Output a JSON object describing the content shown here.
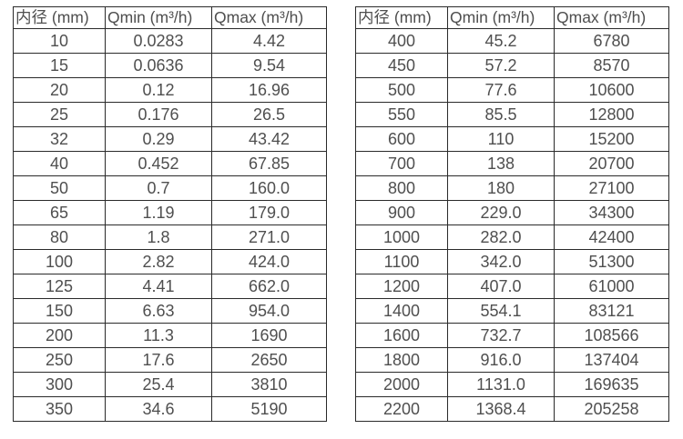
{
  "colors": {
    "border": "#2a2a2a",
    "text": "#4f4f4f",
    "background": "#ffffff"
  },
  "chart_data": [
    {
      "type": "table",
      "title": "",
      "headers": [
        "内径 (mm)",
        "Qmin (m³/h)",
        "Qmax (m³/h)"
      ],
      "rows": [
        [
          "10",
          "0.0283",
          "4.42"
        ],
        [
          "15",
          "0.0636",
          "9.54"
        ],
        [
          "20",
          "0.12",
          "16.96"
        ],
        [
          "25",
          "0.176",
          "26.5"
        ],
        [
          "32",
          "0.29",
          "43.42"
        ],
        [
          "40",
          "0.452",
          "67.85"
        ],
        [
          "50",
          "0.7",
          "160.0"
        ],
        [
          "65",
          "1.19",
          "179.0"
        ],
        [
          "80",
          "1.8",
          "271.0"
        ],
        [
          "100",
          "2.82",
          "424.0"
        ],
        [
          "125",
          "4.41",
          "662.0"
        ],
        [
          "150",
          "6.63",
          "954.0"
        ],
        [
          "200",
          "11.3",
          "1690"
        ],
        [
          "250",
          "17.6",
          "2650"
        ],
        [
          "300",
          "25.4",
          "3810"
        ],
        [
          "350",
          "34.6",
          "5190"
        ]
      ]
    },
    {
      "type": "table",
      "title": "",
      "headers": [
        "内径 (mm)",
        "Qmin (m³/h)",
        "Qmax (m³/h)"
      ],
      "rows": [
        [
          "400",
          "45.2",
          "6780"
        ],
        [
          "450",
          "57.2",
          "8570"
        ],
        [
          "500",
          "77.6",
          "10600"
        ],
        [
          "550",
          "85.5",
          "12800"
        ],
        [
          "600",
          "110",
          "15200"
        ],
        [
          "700",
          "138",
          "20700"
        ],
        [
          "800",
          "180",
          "27100"
        ],
        [
          "900",
          "229.0",
          "34300"
        ],
        [
          "1000",
          "282.0",
          "42400"
        ],
        [
          "1100",
          "342.0",
          "51300"
        ],
        [
          "1200",
          "407.0",
          "61000"
        ],
        [
          "1400",
          "554.1",
          "83121"
        ],
        [
          "1600",
          "732.7",
          "108566"
        ],
        [
          "1800",
          "916.0",
          "137404"
        ],
        [
          "2000",
          "1131.0",
          "169635"
        ],
        [
          "2200",
          "1368.4",
          "205258"
        ]
      ]
    }
  ]
}
